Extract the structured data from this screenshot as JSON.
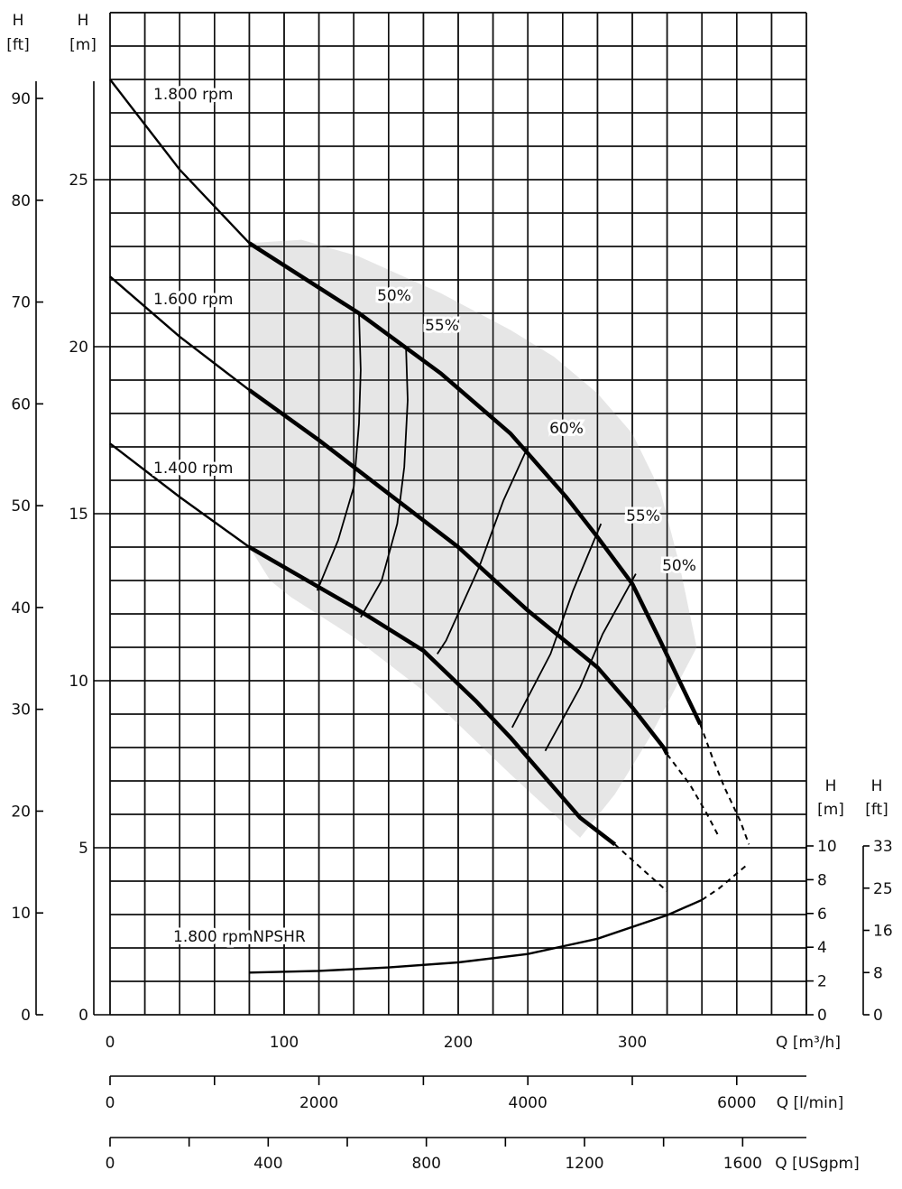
{
  "chart_data": {
    "type": "line",
    "title": "",
    "x": {
      "label": "Q [m³/h]",
      "range": [
        0,
        400
      ],
      "ticks": [
        "0",
        "100",
        "200",
        "300"
      ]
    },
    "y": {
      "label_left_outer": [
        "H",
        "[ft]"
      ],
      "label_left_inner": [
        "H",
        "[m]"
      ],
      "range": [
        0,
        30
      ],
      "ticks_m": [
        "0",
        "5",
        "10",
        "15",
        "20",
        "25"
      ],
      "ticks_ft": [
        "0",
        "10",
        "20",
        "30",
        "40",
        "50",
        "60",
        "70",
        "80",
        "90"
      ]
    },
    "secondary_x": [
      {
        "label": "Q [l/min]",
        "ticks": [
          "0",
          "2000",
          "4000",
          "6000"
        ]
      },
      {
        "label": "Q [USgpm]",
        "ticks": [
          "0",
          "400",
          "800",
          "1200",
          "1600"
        ]
      }
    ],
    "npsh_axis": {
      "label_m": [
        "H",
        "[m]"
      ],
      "label_ft": [
        "H",
        "[ft]"
      ],
      "ticks_m": [
        "0",
        "2",
        "4",
        "6",
        "8",
        "10"
      ],
      "ticks_ft": [
        "0",
        "8",
        "16",
        "25",
        "33"
      ]
    },
    "grid": true,
    "operating_region": {
      "fill": "#e6e6e6",
      "outline": [
        [
          80,
          23.1
        ],
        [
          80,
          14.0
        ],
        [
          92,
          13.0
        ],
        [
          104,
          12.5
        ],
        [
          140,
          11.3
        ],
        [
          180,
          9.7
        ],
        [
          210,
          8.2
        ],
        [
          230,
          7.2
        ],
        [
          255,
          6.0
        ],
        [
          270,
          5.3
        ],
        [
          290,
          6.6
        ],
        [
          310,
          8.3
        ],
        [
          320,
          9.3
        ],
        [
          337,
          11.0
        ],
        [
          327,
          13.5
        ],
        [
          316,
          15.7
        ],
        [
          300,
          17.4
        ],
        [
          280,
          18.6
        ],
        [
          255,
          19.7
        ],
        [
          230,
          20.5
        ],
        [
          190,
          21.6
        ],
        [
          143,
          22.7
        ],
        [
          110,
          23.2
        ]
      ]
    },
    "series": [
      {
        "name": "1.800 rpm",
        "style": "head",
        "values": [
          [
            0,
            28.0
          ],
          [
            40,
            25.3
          ],
          [
            80,
            23.1
          ],
          [
            143,
            21.0
          ],
          [
            190,
            19.2
          ],
          [
            230,
            17.4
          ],
          [
            262,
            15.5
          ],
          [
            280,
            14.3
          ],
          [
            300,
            12.9
          ],
          [
            316,
            11.2
          ],
          [
            327,
            10.0
          ],
          [
            339,
            8.7
          ],
          [
            346,
            7.7
          ],
          [
            353,
            6.8
          ],
          [
            362,
            5.8
          ],
          [
            367,
            5.1
          ]
        ]
      },
      {
        "name": "1.600 rpm",
        "style": "head",
        "values": [
          [
            0,
            22.1
          ],
          [
            40,
            20.3
          ],
          [
            80,
            18.7
          ],
          [
            120,
            17.2
          ],
          [
            160,
            15.6
          ],
          [
            200,
            14.0
          ],
          [
            240,
            12.1
          ],
          [
            280,
            10.4
          ],
          [
            300,
            9.2
          ],
          [
            318,
            8.0
          ],
          [
            320,
            7.8
          ],
          [
            333,
            6.9
          ],
          [
            343,
            6.0
          ],
          [
            350,
            5.3
          ]
        ]
      },
      {
        "name": "1.400 rpm",
        "style": "head",
        "values": [
          [
            0,
            17.1
          ],
          [
            40,
            15.5
          ],
          [
            80,
            14.0
          ],
          [
            120,
            12.8
          ],
          [
            140,
            12.2
          ],
          [
            180,
            10.9
          ],
          [
            210,
            9.4
          ],
          [
            230,
            8.3
          ],
          [
            255,
            6.8
          ],
          [
            270,
            5.9
          ],
          [
            290,
            5.1
          ],
          [
            307,
            4.3
          ],
          [
            320,
            3.7
          ]
        ]
      },
      {
        "name": "1.800 rpmNPSHR",
        "style": "npsh",
        "values": [
          [
            80,
            2.5
          ],
          [
            120,
            2.6
          ],
          [
            160,
            2.8
          ],
          [
            200,
            3.1
          ],
          [
            240,
            3.6
          ],
          [
            280,
            4.5
          ],
          [
            320,
            5.9
          ],
          [
            340,
            6.8
          ],
          [
            350,
            7.5
          ],
          [
            365,
            8.8
          ]
        ]
      }
    ],
    "efficiency_labels": [
      "50%",
      "55%",
      "60%",
      "55%",
      "50%"
    ],
    "efficiency_lines": [
      [
        [
          143,
          21.0
        ],
        [
          144,
          19.3
        ],
        [
          143,
          17.7
        ],
        [
          140,
          15.8
        ],
        [
          131,
          14.2
        ],
        [
          119,
          12.7
        ]
      ],
      [
        [
          170,
          20.0
        ],
        [
          171,
          18.4
        ],
        [
          169,
          16.4
        ],
        [
          165,
          14.7
        ],
        [
          156,
          13.0
        ],
        [
          144,
          11.9
        ]
      ],
      [
        [
          240,
          17.0
        ],
        [
          226,
          15.4
        ],
        [
          212,
          13.4
        ],
        [
          193,
          11.2
        ],
        [
          188,
          10.8
        ]
      ],
      [
        [
          282,
          14.7
        ],
        [
          266,
          12.7
        ],
        [
          253,
          10.8
        ],
        [
          234,
          8.9
        ],
        [
          231,
          8.6
        ]
      ],
      [
        [
          302,
          13.2
        ],
        [
          283,
          11.4
        ],
        [
          270,
          9.8
        ],
        [
          250,
          7.9
        ]
      ]
    ]
  }
}
